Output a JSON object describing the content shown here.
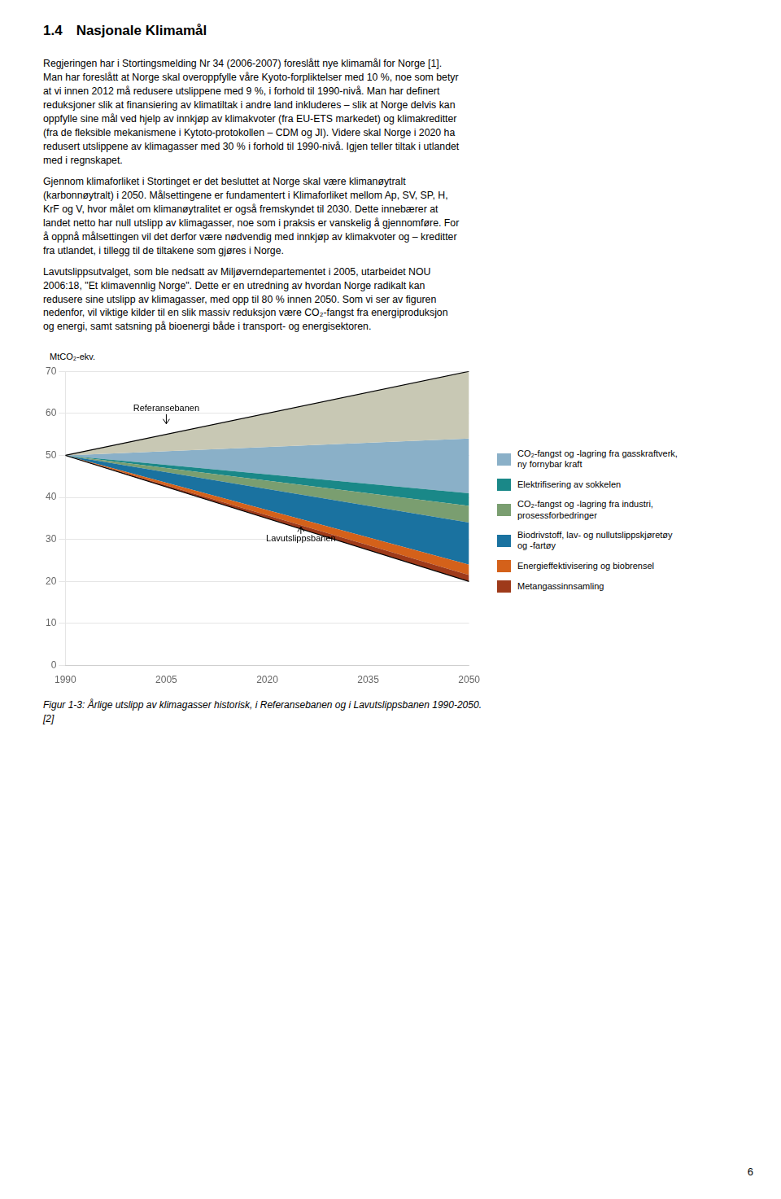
{
  "page_title": "1.4 Nasjonale Klimamål",
  "paragraphs": [
    "Regjeringen har i Stortingsmelding Nr 34 (2006-2007) foreslått nye klimamål for Norge [1].\nMan har foreslått at Norge skal overoppfylle våre Kyoto-forpliktelser med 10 %, noe som betyr\nat vi innen 2012 må redusere utslippene med 9 %, i forhold til 1990-nivå. Man har definert\nreduksjoner slik at finansiering av klimatiltak i andre land inkluderes – slik at Norge delvis kan\noppfylle sine mål ved hjelp av innkjøp av klimakvoter (fra EU-ETS markedet) og klimakreditter\n(fra de fleksible mekanismene i Kytoto-protokollen – CDM og JI). Videre skal Norge i 2020 ha\nredusert utslippene av klimagasser med 30 % i forhold til 1990-nivå. Igjen teller tiltak i utlandet\nmed i regnskapet.",
    "Gjennom klimaforliket i Stortinget er det besluttet at Norge skal være klimanøytralt\n(karbonnøytralt) i 2050. Målsettingene er fundamentert i Klimaforliket mellom Ap, SV, SP, H,\nKrF og V, hvor målet om klimanøytralitet er også fremskyndet til 2030. Dette innebærer at\nlandet netto har null utslipp av klimagasser, noe som i praksis er vanskelig å gjennomføre. For\nå oppnå målsettingen vil det derfor være nødvendig med innkjøp av klimakvoter og – kreditter\nfra utlandet, i tillegg til de tiltakene som gjøres i Norge.",
    "Lavutslippsutvalget, som ble nedsatt av Miljøverndepartementet i 2005, utarbeidet NOU\n2006:18, \"Et klimavennlig Norge\". Dette er en utredning av hvordan Norge radikalt kan\nredusere sine utslipp av klimagasser, med opp til 80 % innen 2050. Som vi ser av figuren\nnedenfor, vil viktige kilder til en slik massiv reduksjon være CO₂-fangst fra energiproduksjon\nog energi, samt satsning på bioenergi både i transport- og energisektoren."
  ],
  "chart_data": {
    "type": "area",
    "ylabel": "MtCO₂-ekv.",
    "x": [
      1990,
      2050
    ],
    "xlim": [
      1990,
      2050
    ],
    "xticks": [
      1990,
      2005,
      2020,
      2035,
      2050
    ],
    "ylim": [
      0,
      70
    ],
    "yticks": [
      0,
      10,
      20,
      30,
      40,
      50,
      60,
      70
    ],
    "grid": "y",
    "legend": "right",
    "series": [
      {
        "type": "area",
        "color": "#c8c8b4",
        "values": [
          50,
          70
        ],
        "bottom": [
          50,
          54
        ]
      },
      {
        "type": "area",
        "name": "Metangassinnsamling",
        "color": "#9e3a1a",
        "values": [
          50,
          21.5
        ],
        "bottom": [
          50,
          20
        ]
      },
      {
        "type": "area",
        "name": "Energieffektivisering og biobrensel",
        "color": "#d4611a",
        "values": [
          50,
          24
        ],
        "bottom": [
          50,
          21.5
        ]
      },
      {
        "type": "area",
        "name": "Biodrivstoff, lav- og nullutslippskjøretøy\nog -fartøy",
        "color": "#1a72a0",
        "values": [
          50,
          34
        ],
        "bottom": [
          50,
          24
        ]
      },
      {
        "type": "area",
        "name": "CO₂-fangst og -lagring fra industri,\nprosessforbedringer",
        "color": "#7a9e70",
        "values": [
          50,
          38
        ],
        "bottom": [
          50,
          34
        ]
      },
      {
        "type": "area",
        "name": "Elektrifisering av sokkelen",
        "color": "#1a8888",
        "values": [
          50,
          41
        ],
        "bottom": [
          50,
          38
        ]
      },
      {
        "type": "area",
        "name": "CO₂-fangst og -lagring fra gasskraftverk,\nny fornybar kraft",
        "color": "#8ab0c8",
        "values": [
          50,
          54
        ],
        "bottom": [
          50,
          41
        ]
      },
      {
        "type": "line",
        "color": "#000000",
        "line_style": "solid",
        "values": [
          50,
          20
        ]
      },
      {
        "type": "line",
        "color": "#000000",
        "line_style": "solid",
        "values": [
          50,
          70
        ]
      }
    ],
    "annotations": [
      {
        "text": "Referansebanen",
        "x": 2005,
        "y": 60,
        "arrow_y": 57.5
      },
      {
        "text": "Lavutslippsbanen",
        "x": 2025,
        "y": 29,
        "arrow_y": 33
      }
    ]
  },
  "caption": [
    "Figur 1-3: Årlige utslipp av klimagasser historisk, i Referansebanen og i Lavutslippsbanen 1990-2050.",
    "[2]"
  ],
  "page_number": "6"
}
